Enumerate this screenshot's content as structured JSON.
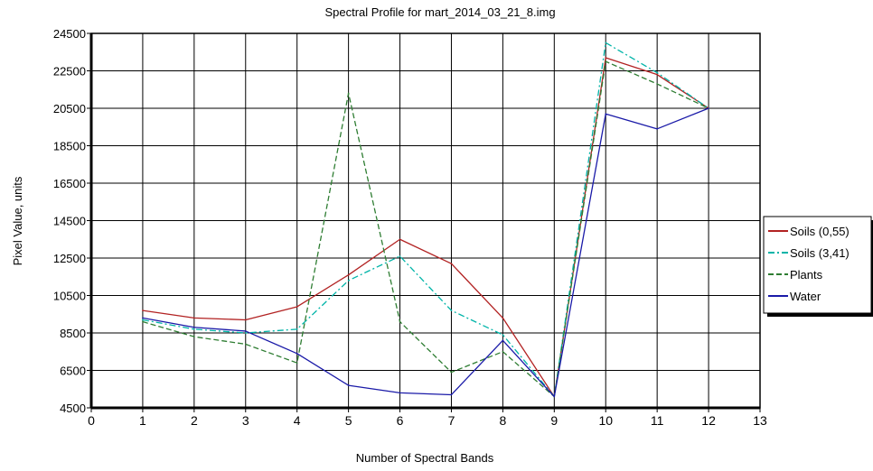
{
  "chart_data": {
    "type": "line",
    "title": "Spectral Profile for mart_2014_03_21_8.img",
    "xlabel": "Number of Spectral Bands",
    "ylabel": "Pixel Value, units",
    "xlim": [
      0,
      13
    ],
    "ylim": [
      4500,
      24500
    ],
    "xticks": [
      0,
      1,
      2,
      3,
      4,
      5,
      6,
      7,
      8,
      9,
      10,
      11,
      12,
      13
    ],
    "yticks": [
      4500,
      6500,
      8500,
      10500,
      12500,
      14500,
      16500,
      18500,
      20500,
      22500,
      24500
    ],
    "grid": true,
    "legend_position": "right",
    "x": [
      1,
      2,
      3,
      4,
      5,
      6,
      7,
      8,
      9,
      10,
      11,
      12
    ],
    "series": [
      {
        "name": "Soils (0,55)",
        "color": "#b22222",
        "dash": "solid",
        "values": [
          9700,
          9300,
          9200,
          9900,
          11600,
          13500,
          12200,
          9300,
          5100,
          23200,
          22300,
          20500
        ]
      },
      {
        "name": "Soils (3,41)",
        "color": "#00b4a8",
        "dash": "dashdot",
        "values": [
          9200,
          8700,
          8500,
          8700,
          11300,
          12600,
          9700,
          8400,
          5100,
          24000,
          22400,
          20500
        ]
      },
      {
        "name": "Plants",
        "color": "#2e7d32",
        "dash": "dashed",
        "values": [
          9100,
          8300,
          7900,
          6900,
          21300,
          9100,
          6400,
          7500,
          5100,
          23000,
          21800,
          20500
        ]
      },
      {
        "name": "Water",
        "color": "#1a1aa8",
        "dash": "solid",
        "values": [
          9300,
          8800,
          8600,
          7400,
          5700,
          5300,
          5200,
          8100,
          5100,
          20200,
          19400,
          20500
        ]
      }
    ]
  }
}
